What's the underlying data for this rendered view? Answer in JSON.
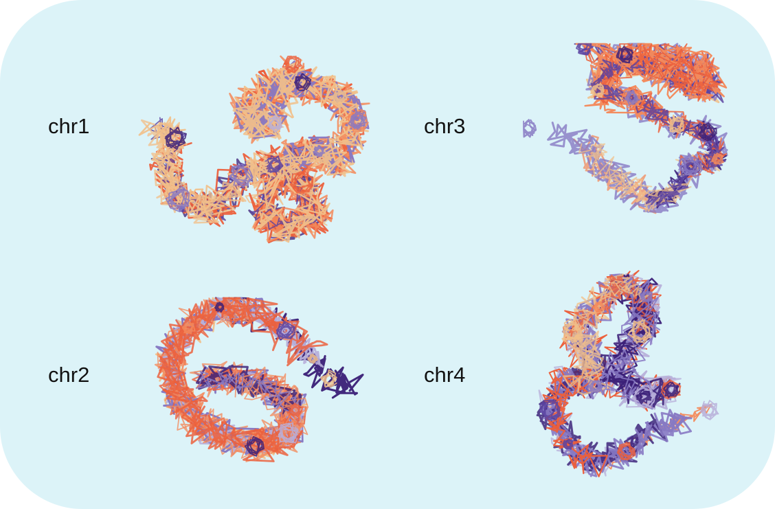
{
  "panels": [
    {
      "id": "chr1",
      "label": "chr1",
      "seed": 11
    },
    {
      "id": "chr2",
      "label": "chr2",
      "seed": 23
    },
    {
      "id": "chr3",
      "label": "chr3",
      "seed": 37
    },
    {
      "id": "chr4",
      "label": "chr4",
      "seed": 53
    }
  ],
  "colors": {
    "background": "#dcf3f8",
    "gradient": [
      "#f1c08a",
      "#f38a5c",
      "#ec5f3b",
      "#b7aed9",
      "#8779c3",
      "#5b43a1",
      "#3b2078"
    ]
  }
}
